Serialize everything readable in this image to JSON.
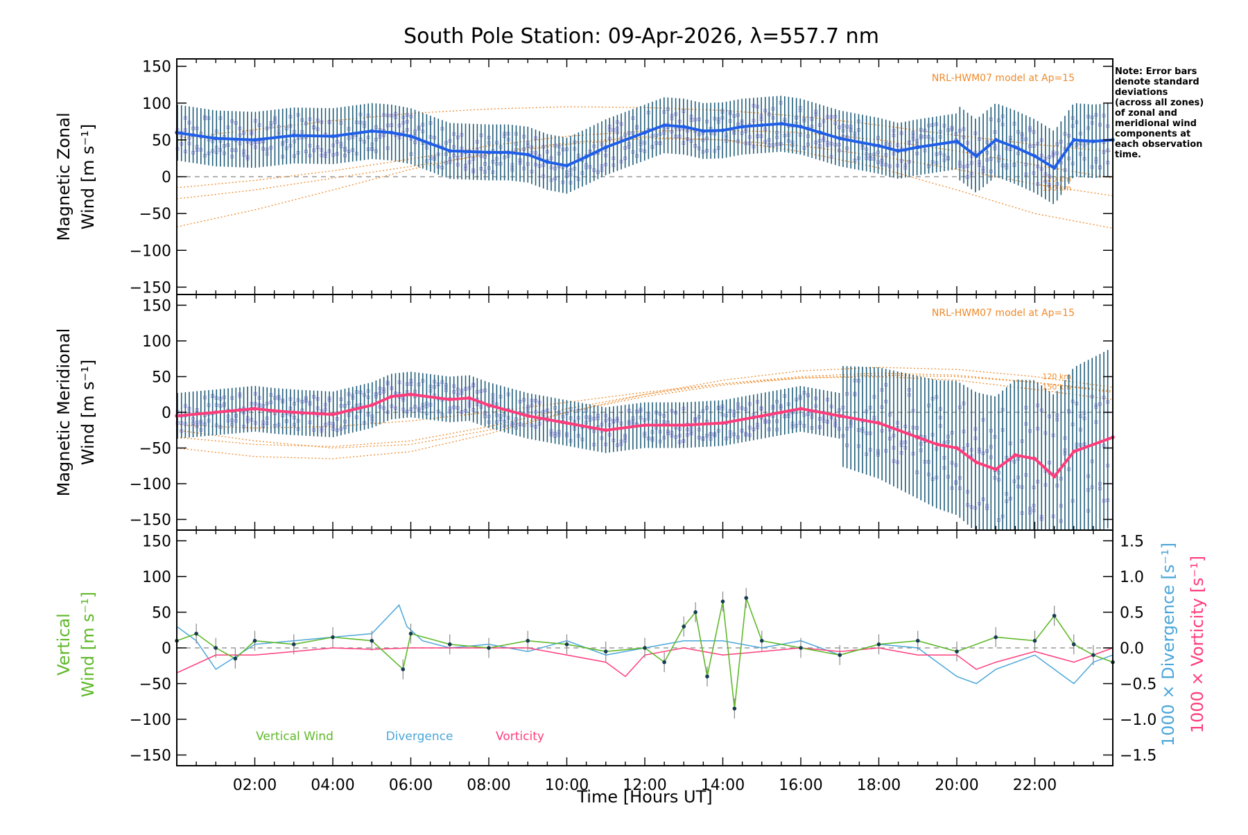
{
  "chart_data": {
    "type": "line",
    "title": "South Pole Station: 09-Apr-2026, λ=557.7 nm",
    "xlabel": "Time [Hours UT]",
    "x_ticks": [
      "02:00",
      "04:00",
      "06:00",
      "08:00",
      "10:00",
      "12:00",
      "14:00",
      "16:00",
      "18:00",
      "20:00",
      "22:00"
    ],
    "xlim": [
      0,
      24
    ],
    "note_lines": [
      "Note: Error bars",
      "denote standard",
      "deviations",
      "(across all zones)",
      "of zonal and",
      "meridional wind",
      "components at",
      "each observation",
      "time."
    ],
    "colors": {
      "zonal_mean": "#1f5ee8",
      "meridional_mean": "#ff3c7a",
      "error_bar": "#1d5c78",
      "zone_points": "#a8a0e4",
      "model": "#ee8a2a",
      "vertical": "#5fb82a",
      "divergence": "#4aa6da",
      "vorticity": "#ff3c7a",
      "marker": "#163c52"
    },
    "panels": [
      {
        "ylabel_line1": "Magnetic Zonal",
        "ylabel_line2": "Wind [m s⁻¹]",
        "ylim": [
          -160,
          160
        ],
        "y_ticks": [
          "150",
          "100",
          "50",
          "0",
          "−50",
          "−100",
          "−150"
        ],
        "model_label": "NRL-HWM07 model at Ap=15",
        "alt_labels": [
          "120 km",
          "150 km"
        ],
        "series_name": "Magnetic Zonal Wind (mean)",
        "times": [
          0,
          1,
          2,
          3,
          4,
          5,
          5.5,
          6,
          6.5,
          7,
          8,
          8.5,
          9,
          9.5,
          10,
          10.5,
          11,
          12,
          12.5,
          13,
          13.5,
          14,
          14.5,
          15,
          15.5,
          16,
          16.5,
          17,
          18,
          18.5,
          19,
          20,
          20.5,
          21,
          21.5,
          22,
          22.5,
          23,
          23.5,
          24
        ],
        "values": [
          60,
          52,
          50,
          56,
          55,
          62,
          60,
          55,
          45,
          35,
          33,
          33,
          30,
          20,
          15,
          27,
          40,
          60,
          70,
          68,
          62,
          63,
          68,
          70,
          72,
          68,
          60,
          52,
          42,
          35,
          40,
          48,
          28,
          50,
          40,
          28,
          12,
          50,
          48,
          50
        ],
        "model_curves": [
          {
            "name": "120 km",
            "values": [
              52,
              64,
              76,
              86,
              92,
              95,
              94,
              90,
              82,
              70,
              56,
              44,
              34
            ]
          },
          {
            "name": "150 km",
            "values": [
              -30,
              -18,
              -2,
              14,
              30,
              44,
              52,
              50,
              42,
              28,
              10,
              -10,
              -26
            ]
          },
          {
            "name": "model-3",
            "values": [
              -68,
              -45,
              -18,
              10,
              32,
              46,
              54,
              50,
              34,
              12,
              -18,
              -50,
              -70
            ]
          },
          {
            "name": "model-4",
            "values": [
              -15,
              -5,
              8,
              24,
              42,
              55,
              62,
              63,
              60,
              50,
              35,
              16,
              -2
            ]
          }
        ]
      },
      {
        "ylabel_line1": "Magnetic Meridional",
        "ylabel_line2": "Wind [m s⁻¹]",
        "ylim": [
          -165,
          165
        ],
        "y_ticks": [
          "150",
          "100",
          "50",
          "0",
          "−50",
          "−100",
          "−150"
        ],
        "model_label": "NRL-HWM07 model at Ap=15",
        "alt_labels": [
          "120 km",
          "150 km"
        ],
        "series_name": "Magnetic Meridional Wind (mean)",
        "times": [
          0,
          1,
          2,
          2.5,
          3,
          4,
          5,
          5.5,
          6,
          7,
          7.5,
          8,
          9,
          10,
          11,
          12,
          13,
          14,
          15,
          15.5,
          16,
          17,
          18,
          19,
          19.5,
          20,
          20.5,
          21,
          21.5,
          22,
          22.5,
          23,
          24
        ],
        "values": [
          -5,
          0,
          5,
          2,
          0,
          -3,
          10,
          22,
          25,
          18,
          20,
          10,
          -5,
          -15,
          -25,
          -18,
          -18,
          -15,
          -5,
          0,
          5,
          -5,
          -15,
          -35,
          -45,
          -50,
          -70,
          -80,
          -60,
          -65,
          -90,
          -55,
          -35
        ],
        "model_curves": [
          {
            "name": "120 km",
            "values": [
              -25,
              -40,
              -50,
              -45,
              -25,
              0,
              25,
              45,
              58,
              63,
              60,
              50,
              35
            ]
          },
          {
            "name": "150 km",
            "values": [
              -50,
              -62,
              -65,
              -55,
              -30,
              0,
              22,
              38,
              48,
              50,
              45,
              32,
              18
            ]
          },
          {
            "name": "model-3",
            "values": [
              -18,
              -22,
              -20,
              -12,
              0,
              14,
              28,
              40,
              48,
              52,
              50,
              42,
              30
            ]
          },
          {
            "name": "model-4",
            "values": [
              -35,
              -45,
              -48,
              -40,
              -20,
              5,
              25,
              40,
              50,
              55,
              52,
              42,
              28
            ]
          }
        ]
      },
      {
        "ylabel_line1": "Vertical",
        "ylabel_line2": "Wind [m s⁻¹]",
        "ylim": [
          -165,
          165
        ],
        "y_ticks": [
          "150",
          "100",
          "50",
          "0",
          "−50",
          "−100",
          "−150"
        ],
        "right_ticks": [
          "1.5",
          "1.0",
          "0.5",
          "0.0",
          "−0.5",
          "−1.0",
          "−1.5"
        ],
        "right_label_1": "1000 × Divergence [s⁻¹]",
        "right_label_2": "1000 × Vorticity [s⁻¹]",
        "legend": [
          "Vertical Wind",
          "Divergence",
          "Vorticity"
        ],
        "vertical_wind": {
          "times": [
            0,
            0.5,
            1,
            1.5,
            2,
            3,
            4,
            5,
            5.8,
            6,
            7,
            8,
            9,
            10,
            11,
            12,
            12.5,
            13,
            13.3,
            13.6,
            14,
            14.3,
            14.6,
            15,
            16,
            17,
            18,
            19,
            20,
            21,
            22,
            22.5,
            23,
            23.5,
            24
          ],
          "values": [
            10,
            20,
            0,
            -15,
            10,
            5,
            15,
            10,
            -30,
            20,
            5,
            0,
            10,
            5,
            -5,
            0,
            -20,
            30,
            50,
            -40,
            65,
            -85,
            70,
            10,
            0,
            -10,
            5,
            10,
            -5,
            15,
            10,
            45,
            5,
            -10,
            -20
          ]
        },
        "divergence": {
          "times": [
            0,
            0.5,
            1,
            2,
            3,
            4,
            5,
            5.7,
            5.9,
            6.3,
            7,
            8,
            9,
            10,
            11,
            12,
            13,
            14,
            15,
            16,
            17,
            18,
            19,
            20,
            20.5,
            21,
            22,
            22.5,
            23,
            23.5,
            24
          ],
          "values": [
            0.3,
            0.1,
            -0.3,
            0.05,
            0.1,
            0.15,
            0.2,
            0.6,
            0.3,
            0.1,
            0.0,
            0.05,
            -0.05,
            0.1,
            -0.1,
            0.0,
            0.1,
            0.1,
            0.0,
            0.1,
            -0.1,
            0.05,
            0.0,
            -0.4,
            -0.5,
            -0.3,
            -0.1,
            -0.3,
            -0.5,
            -0.2,
            -0.1
          ]
        },
        "vorticity": {
          "times": [
            0,
            1,
            2,
            3,
            4,
            5,
            6,
            7,
            8,
            9,
            10,
            11,
            11.5,
            12,
            13,
            14,
            15,
            16,
            17,
            18,
            19,
            20,
            20.5,
            21,
            22,
            23,
            24
          ],
          "values": [
            -0.35,
            -0.1,
            -0.1,
            -0.05,
            0.0,
            -0.02,
            0.0,
            0.0,
            0.0,
            0.0,
            -0.1,
            -0.2,
            -0.4,
            -0.1,
            0.0,
            -0.1,
            -0.05,
            0.0,
            -0.05,
            0.0,
            -0.1,
            -0.1,
            -0.3,
            -0.2,
            -0.05,
            -0.2,
            0.0
          ]
        }
      }
    ]
  }
}
